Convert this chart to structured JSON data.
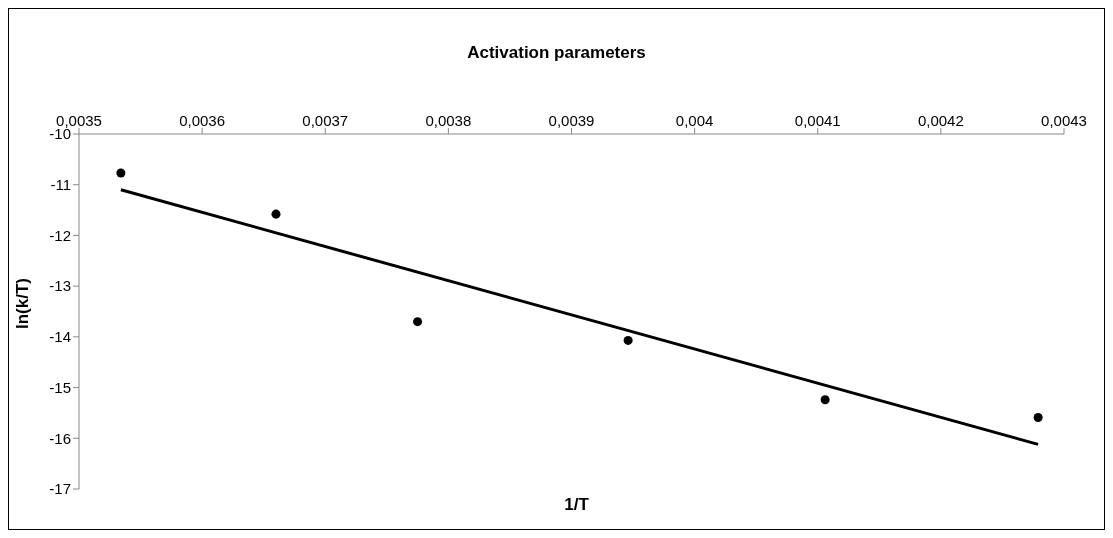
{
  "chart_data": {
    "type": "scatter",
    "title": "Activation parameters",
    "xlabel": "1/T",
    "ylabel": "ln(k/T)",
    "series": [
      {
        "type": "scatter",
        "color": "#000000",
        "x": [
          0.003534,
          0.00366,
          0.003775,
          0.003946,
          0.004106,
          0.004279
        ],
        "values": [
          -10.77,
          -11.58,
          -13.7,
          -14.07,
          -15.24,
          -15.59
        ],
        "marker": "circle"
      },
      {
        "type": "line",
        "color": "#000000",
        "x": [
          0.003534,
          0.004279
        ],
        "values": [
          -11.1,
          -16.12
        ],
        "line_style": "solid"
      }
    ],
    "xlim": [
      0.0035,
      0.0043
    ],
    "xticks": [
      {
        "value": 0.0035,
        "label": "0,0035"
      },
      {
        "value": 0.0036,
        "label": "0,0036"
      },
      {
        "value": 0.0037,
        "label": "0,0037"
      },
      {
        "value": 0.0038,
        "label": "0,0038"
      },
      {
        "value": 0.0039,
        "label": "0,0039"
      },
      {
        "value": 0.004,
        "label": "0,004"
      },
      {
        "value": 0.0041,
        "label": "0,0041"
      },
      {
        "value": 0.0042,
        "label": "0,0042"
      },
      {
        "value": 0.0043,
        "label": "0,0043"
      }
    ],
    "ylim": [
      -17,
      -10
    ],
    "yticks": [
      -10,
      -11,
      -12,
      -13,
      -14,
      -15,
      -16,
      -17
    ],
    "grid": false
  }
}
